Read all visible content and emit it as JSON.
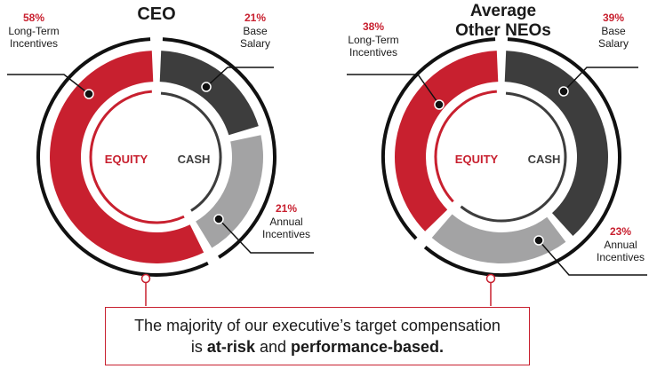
{
  "colors": {
    "equity": "#c8202f",
    "cash": "#3d3d3d",
    "annual": "#a3a3a4",
    "outer_ring": "#111111"
  },
  "callout": {
    "line1": "The majority of our executive’s target compensation",
    "line2_prefix": "is ",
    "line2_bold1": "at-risk",
    "line2_mid": " and ",
    "line2_bold2": "performance-based."
  },
  "chart_data": [
    {
      "type": "pie",
      "title_lines": [
        "CEO"
      ],
      "slices": [
        {
          "name": "Base Salary",
          "label_lines": [
            "Base",
            "Salary"
          ],
          "value": 21,
          "pct_text": "21%",
          "color": "#3d3d3d"
        },
        {
          "name": "Annual Incentives",
          "label_lines": [
            "Annual",
            "Incentives"
          ],
          "value": 21,
          "pct_text": "21%",
          "color": "#a3a3a4"
        },
        {
          "name": "Long-Term Incentives",
          "label_lines": [
            "Long-Term",
            "Incentives"
          ],
          "value": 58,
          "pct_text": "58%",
          "color": "#c8202f"
        }
      ],
      "inner_labels": {
        "equity": "EQUITY",
        "cash": "CASH"
      }
    },
    {
      "type": "pie",
      "title_lines": [
        "Average",
        "Other NEOs"
      ],
      "slices": [
        {
          "name": "Base Salary",
          "label_lines": [
            "Base",
            "Salary"
          ],
          "value": 39,
          "pct_text": "39%",
          "color": "#3d3d3d"
        },
        {
          "name": "Annual Incentives",
          "label_lines": [
            "Annual",
            "Incentives"
          ],
          "value": 23,
          "pct_text": "23%",
          "color": "#a3a3a4"
        },
        {
          "name": "Long-Term Incentives",
          "label_lines": [
            "Long-Term",
            "Incentives"
          ],
          "value": 38,
          "pct_text": "38%",
          "color": "#c8202f"
        }
      ],
      "inner_labels": {
        "equity": "EQUITY",
        "cash": "CASH"
      }
    }
  ]
}
